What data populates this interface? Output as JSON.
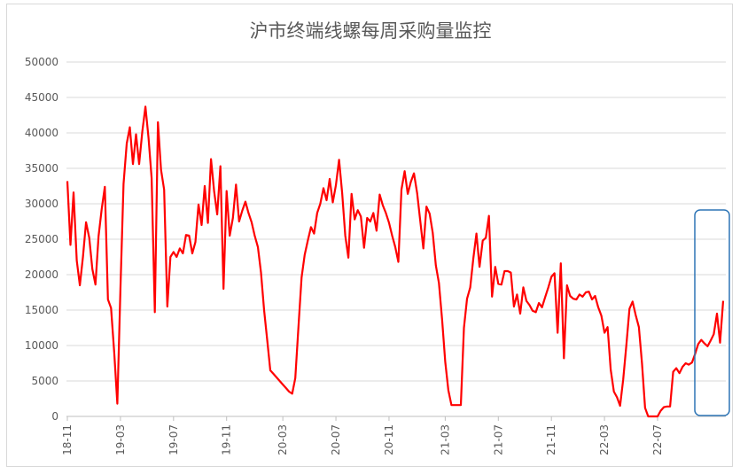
{
  "chart_data": {
    "type": "line",
    "title": "沪市终端线螺每周采购量监控",
    "xlabel": "",
    "ylabel": "",
    "ylim": [
      0,
      50000
    ],
    "y_ticks": [
      0,
      5000,
      10000,
      15000,
      20000,
      25000,
      30000,
      35000,
      40000,
      45000,
      50000
    ],
    "x_ticks": [
      "18-11",
      "19-03",
      "19-07",
      "19-11",
      "20-03",
      "20-07",
      "20-11",
      "21-03",
      "21-07",
      "21-11",
      "22-03",
      "22-07"
    ],
    "x_tick_week_index": [
      0,
      17,
      34,
      51,
      69,
      86,
      103,
      121,
      138,
      155,
      172,
      189
    ],
    "grid": "horizontal",
    "legend": "none",
    "line_color": "#ff0000",
    "highlight_box_color": "#2e75b6",
    "series": [
      {
        "values": [
          33200,
          24200,
          31600,
          22000,
          18500,
          22500,
          27400,
          25200,
          20800,
          18600,
          25400,
          29300,
          32400,
          16500,
          15300,
          9000,
          1800,
          18000,
          32800,
          38500,
          40800,
          35600,
          39800,
          35600,
          40200,
          43700,
          39300,
          33600,
          14700,
          41500,
          34800,
          32000,
          15500,
          22500,
          23200,
          22500,
          23700,
          23000,
          25600,
          25500,
          23000,
          24600,
          29900,
          27000,
          32500,
          27300,
          36300,
          31800,
          28500,
          35300,
          18000,
          31800,
          25500,
          28000,
          32700,
          27500,
          29000,
          30300,
          28700,
          27400,
          25500,
          23900,
          20300,
          15000,
          10800,
          6500,
          6000,
          5500,
          5000,
          4500,
          4000,
          3500,
          3200,
          5400,
          12700,
          19600,
          22800,
          24800,
          26700,
          25800,
          28700,
          30000,
          32200,
          30500,
          33500,
          30200,
          32600,
          36200,
          31500,
          25500,
          22400,
          31400,
          27800,
          29100,
          28200,
          23800,
          28000,
          27500,
          28700,
          26200,
          31300,
          29800,
          28700,
          27300,
          25500,
          23900,
          21800,
          32000,
          34600,
          31400,
          33100,
          34300,
          31500,
          27600,
          23700,
          29600,
          28600,
          25900,
          21300,
          18800,
          13600,
          7700,
          3700,
          1600,
          1600,
          1600,
          1600,
          12500,
          16600,
          18200,
          22300,
          25800,
          21100,
          24800,
          25200,
          28300,
          16900,
          21100,
          18700,
          18600,
          20500,
          20500,
          20300,
          15500,
          17200,
          14500,
          18200,
          16300,
          15700,
          14900,
          14700,
          16000,
          15400,
          16800,
          18200,
          19700,
          20200,
          11800,
          21600,
          8200,
          18500,
          17000,
          16600,
          16500,
          17200,
          16900,
          17500,
          17600,
          16500,
          17000,
          15400,
          14200,
          11800,
          12600,
          6600,
          3500,
          2700,
          1500,
          5200,
          10100,
          15200,
          16200,
          14300,
          12600,
          7500,
          1200,
          0,
          0,
          0,
          0,
          800,
          1300,
          1400,
          1400,
          6300,
          6800,
          6100,
          7000,
          7500,
          7300,
          7600,
          8800,
          10200,
          10800,
          10300,
          9900,
          10700,
          11600,
          14500,
          10400,
          16300
        ]
      }
    ]
  }
}
